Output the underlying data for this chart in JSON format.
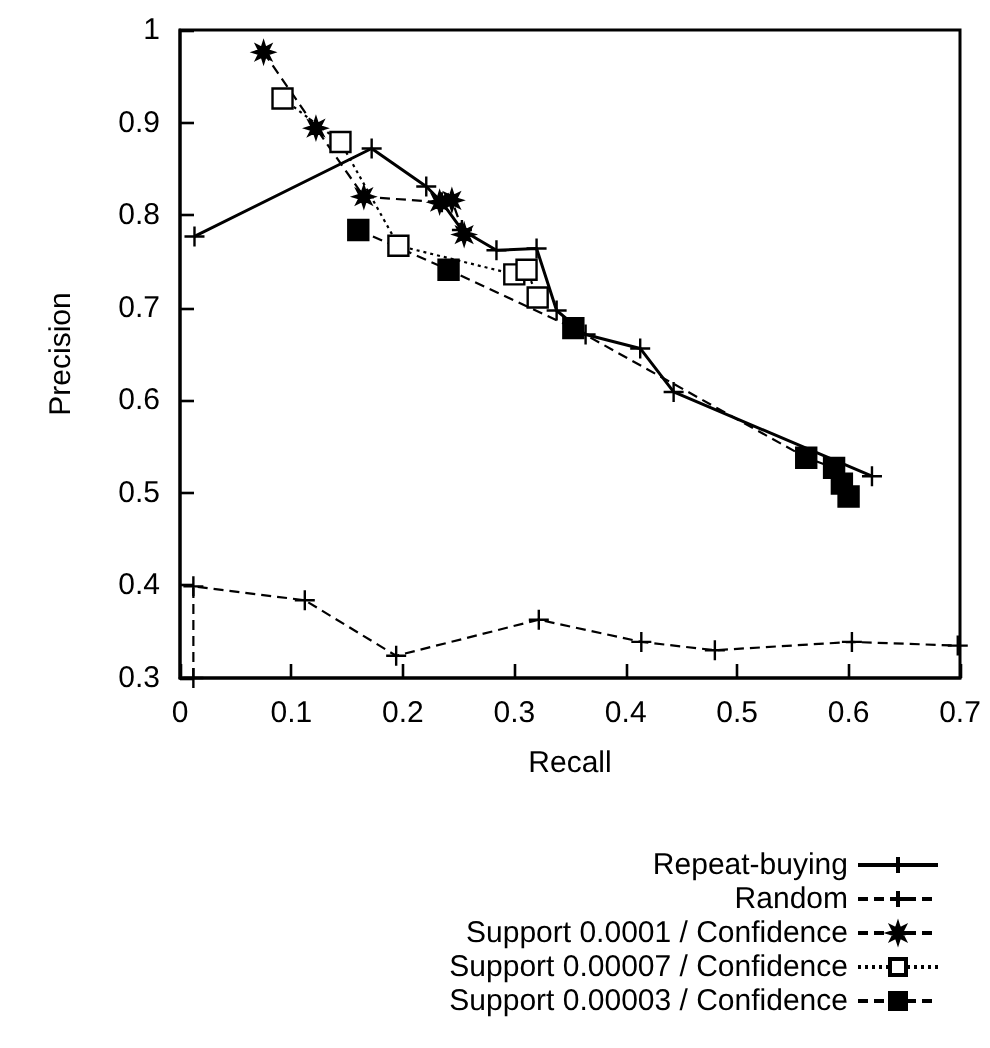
{
  "chart_data": {
    "type": "line",
    "xlabel": "Recall",
    "ylabel": "Precision",
    "xlim": [
      0,
      0.7
    ],
    "xticks": [
      0,
      0.1,
      0.2,
      0.3,
      0.4,
      0.5,
      0.6,
      0.7
    ],
    "ylim": [
      0.3,
      1
    ],
    "yticks": [
      0.3,
      0.4,
      0.5,
      0.6,
      0.7,
      0.8,
      0.9,
      1
    ],
    "grid": false,
    "legend": "bottom right",
    "series": [
      {
        "name": "Repeat-buying",
        "color": "#000000",
        "marker": "cross",
        "line_style": "solid",
        "x": [
          0.013,
          0.172,
          0.221,
          0.235,
          0.253,
          0.284,
          0.32,
          0.338,
          0.364,
          0.413,
          0.443,
          0.621
        ],
        "values": [
          0.777,
          0.872,
          0.831,
          0.814,
          0.784,
          0.762,
          0.764,
          0.697,
          0.671,
          0.656,
          0.609,
          0.518
        ]
      },
      {
        "name": "Random",
        "color": "#000000",
        "marker": "cross",
        "line_style": "dashed",
        "x": [
          0.012,
          0.012,
          0.112,
          0.194,
          0.322,
          0.414,
          0.48,
          0.603,
          0.698
        ],
        "values": [
          0.3,
          0.399,
          0.384,
          0.324,
          0.363,
          0.339,
          0.33,
          0.339,
          0.335
        ]
      },
      {
        "name": "Support 0.0001 / Confidence",
        "color": "#000000",
        "marker": "star",
        "line_style": "dashed",
        "x": [
          0.075,
          0.122,
          0.165,
          0.233,
          0.244,
          0.255
        ],
        "values": [
          0.976,
          0.894,
          0.82,
          0.814,
          0.816,
          0.779
        ]
      },
      {
        "name": "Support 0.00007 / Confidence",
        "color": "#000000",
        "marker": "square",
        "line_style": "dotted",
        "x": [
          0.092,
          0.144,
          0.196,
          0.3,
          0.311,
          0.321
        ],
        "values": [
          0.926,
          0.879,
          0.767,
          0.736,
          0.741,
          0.711
        ]
      },
      {
        "name": "Support 0.00003 / Confidence",
        "color": "#000000",
        "marker": "square",
        "line_style": "dashed",
        "x": [
          0.16,
          0.241,
          0.353,
          0.562,
          0.587,
          0.594,
          0.6
        ],
        "values": [
          0.784,
          0.741,
          0.678,
          0.538,
          0.527,
          0.51,
          0.496
        ]
      }
    ]
  }
}
